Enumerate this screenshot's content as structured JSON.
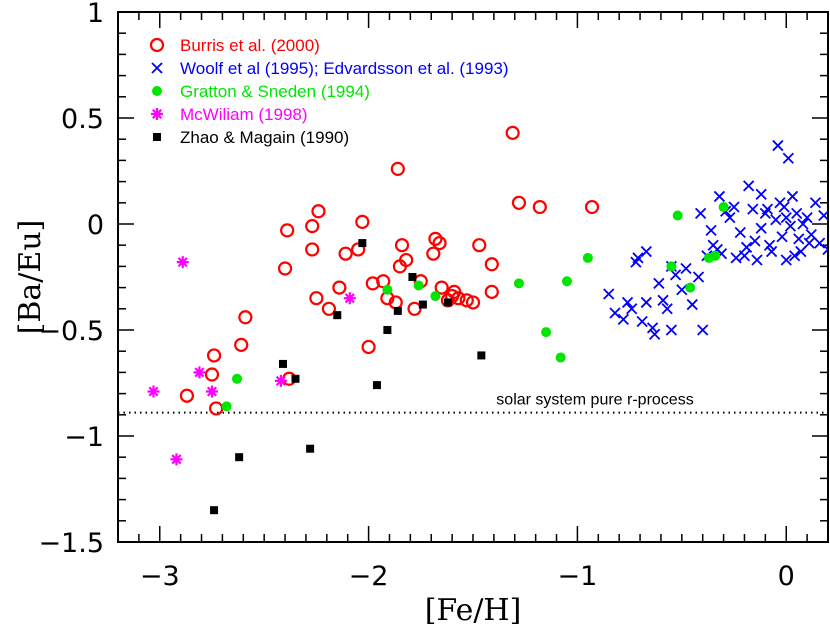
{
  "chart_data": {
    "type": "scatter",
    "title": "",
    "xlabel": "[Fe/H]",
    "ylabel": "[Ba/Eu]",
    "xlim": [
      -3.2,
      0.2
    ],
    "ylim": [
      -1.5,
      1.0
    ],
    "xticks": [
      {
        "value": -3,
        "label": "−3"
      },
      {
        "value": -2,
        "label": "−2"
      },
      {
        "value": -1,
        "label": "−1"
      },
      {
        "value": 0,
        "label": "0"
      }
    ],
    "yticks": [
      {
        "value": -1.5,
        "label": "−1.5"
      },
      {
        "value": -1,
        "label": "−1"
      },
      {
        "value": -0.5,
        "label": "−0.5"
      },
      {
        "value": 0,
        "label": "0"
      },
      {
        "value": 0.5,
        "label": "0.5"
      },
      {
        "value": 1,
        "label": "1"
      }
    ],
    "grid": false,
    "legend_position": "top-left",
    "reference_line": {
      "y": -0.89,
      "style": "dotted",
      "label": "solar system pure r-process"
    },
    "series": [
      {
        "name": "Burris et al. (2000)",
        "marker": "open-circle",
        "color": "#ff0000",
        "points": [
          [
            -2.87,
            -0.81
          ],
          [
            -2.75,
            -0.71
          ],
          [
            -2.74,
            -0.62
          ],
          [
            -2.73,
            -0.87
          ],
          [
            -2.59,
            -0.44
          ],
          [
            -2.61,
            -0.57
          ],
          [
            -2.38,
            -0.73
          ],
          [
            -2.4,
            -0.21
          ],
          [
            -2.39,
            -0.03
          ],
          [
            -2.27,
            -0.01
          ],
          [
            -2.27,
            -0.12
          ],
          [
            -2.24,
            0.06
          ],
          [
            -2.25,
            -0.35
          ],
          [
            -2.19,
            -0.4
          ],
          [
            -2.14,
            -0.3
          ],
          [
            -2.11,
            -0.14
          ],
          [
            -2.05,
            -0.12
          ],
          [
            -2.03,
            0.01
          ],
          [
            -2.0,
            -0.58
          ],
          [
            -1.98,
            -0.28
          ],
          [
            -1.93,
            -0.27
          ],
          [
            -1.91,
            -0.35
          ],
          [
            -1.87,
            -0.37
          ],
          [
            -1.86,
            0.26
          ],
          [
            -1.85,
            -0.2
          ],
          [
            -1.84,
            -0.1
          ],
          [
            -1.82,
            -0.17
          ],
          [
            -1.78,
            -0.4
          ],
          [
            -1.75,
            -0.27
          ],
          [
            -1.69,
            -0.14
          ],
          [
            -1.68,
            -0.07
          ],
          [
            -1.66,
            -0.09
          ],
          [
            -1.65,
            -0.3
          ],
          [
            -1.62,
            -0.36
          ],
          [
            -1.6,
            -0.34
          ],
          [
            -1.59,
            -0.32
          ],
          [
            -1.57,
            -0.35
          ],
          [
            -1.53,
            -0.36
          ],
          [
            -1.5,
            -0.37
          ],
          [
            -1.47,
            -0.1
          ],
          [
            -1.41,
            -0.19
          ],
          [
            -1.41,
            -0.32
          ],
          [
            -1.31,
            0.43
          ],
          [
            -1.28,
            0.1
          ],
          [
            -1.18,
            0.08
          ],
          [
            -0.93,
            0.08
          ]
        ]
      },
      {
        "name": "Woolf et al (1995); Edvardsson et al. (1993)",
        "marker": "cross",
        "color": "#0000ff",
        "points": [
          [
            -0.85,
            -0.33
          ],
          [
            -0.82,
            -0.42
          ],
          [
            -0.78,
            -0.45
          ],
          [
            -0.76,
            -0.37
          ],
          [
            -0.74,
            -0.4
          ],
          [
            -0.72,
            -0.18
          ],
          [
            -0.71,
            -0.16
          ],
          [
            -0.69,
            -0.46
          ],
          [
            -0.67,
            -0.37
          ],
          [
            -0.67,
            -0.13
          ],
          [
            -0.64,
            -0.49
          ],
          [
            -0.63,
            -0.52
          ],
          [
            -0.61,
            -0.28
          ],
          [
            -0.59,
            -0.36
          ],
          [
            -0.57,
            -0.4
          ],
          [
            -0.55,
            -0.2
          ],
          [
            -0.55,
            -0.5
          ],
          [
            -0.53,
            -0.24
          ],
          [
            -0.5,
            -0.31
          ],
          [
            -0.48,
            -0.21
          ],
          [
            -0.45,
            -0.38
          ],
          [
            -0.42,
            -0.25
          ],
          [
            -0.41,
            0.05
          ],
          [
            -0.4,
            -0.5
          ],
          [
            -0.38,
            -0.15
          ],
          [
            -0.35,
            -0.1
          ],
          [
            -0.33,
            -0.12
          ],
          [
            -0.32,
            0.13
          ],
          [
            -0.31,
            -0.14
          ],
          [
            -0.29,
            0.06
          ],
          [
            -0.27,
            0.03
          ],
          [
            -0.25,
            0.08
          ],
          [
            -0.22,
            -0.04
          ],
          [
            -0.2,
            -0.15
          ],
          [
            -0.19,
            -0.11
          ],
          [
            -0.18,
            0.18
          ],
          [
            -0.16,
            0.07
          ],
          [
            -0.15,
            -0.08
          ],
          [
            -0.14,
            -0.17
          ],
          [
            -0.12,
            -0.02
          ],
          [
            -0.12,
            0.14
          ],
          [
            -0.1,
            0.05
          ],
          [
            -0.08,
            -0.1
          ],
          [
            -0.07,
            -0.13
          ],
          [
            -0.05,
            0.02
          ],
          [
            -0.03,
            0.1
          ],
          [
            -0.02,
            -0.06
          ],
          [
            0.0,
            0.03
          ],
          [
            0.0,
            -0.17
          ],
          [
            0.02,
            -0.01
          ],
          [
            0.03,
            0.13
          ],
          [
            0.05,
            0.05
          ],
          [
            0.06,
            -0.07
          ],
          [
            0.08,
            0.0
          ],
          [
            0.1,
            0.03
          ],
          [
            0.12,
            -0.05
          ],
          [
            0.14,
            0.1
          ],
          [
            0.16,
            -0.09
          ],
          [
            0.18,
            0.04
          ],
          [
            0.2,
            -0.12
          ],
          [
            -0.04,
            0.37
          ],
          [
            0.01,
            0.31
          ],
          [
            -0.24,
            -0.16
          ],
          [
            -0.09,
            0.07
          ],
          [
            0.07,
            -0.13
          ],
          [
            -0.36,
            -0.03
          ],
          [
            0.11,
            -0.09
          ],
          [
            -0.01,
            0.08
          ],
          [
            0.04,
            -0.15
          ]
        ]
      },
      {
        "name": "Gratton & Sneden (1994)",
        "marker": "filled-circle",
        "color": "#00e600",
        "points": [
          [
            -2.68,
            -0.86
          ],
          [
            -2.63,
            -0.73
          ],
          [
            -1.91,
            -0.31
          ],
          [
            -1.76,
            -0.29
          ],
          [
            -1.68,
            -0.34
          ],
          [
            -1.28,
            -0.28
          ],
          [
            -1.15,
            -0.51
          ],
          [
            -1.08,
            -0.63
          ],
          [
            -1.05,
            -0.27
          ],
          [
            -0.95,
            -0.16
          ],
          [
            -0.55,
            -0.2
          ],
          [
            -0.52,
            0.04
          ],
          [
            -0.46,
            -0.3
          ],
          [
            -0.37,
            -0.16
          ],
          [
            -0.34,
            -0.15
          ],
          [
            -0.3,
            0.08
          ]
        ]
      },
      {
        "name": "McWiliam  (1998)",
        "marker": "asterisk",
        "color": "#ff00ff",
        "points": [
          [
            -3.03,
            -0.79
          ],
          [
            -2.92,
            -1.11
          ],
          [
            -2.89,
            -0.18
          ],
          [
            -2.81,
            -0.7
          ],
          [
            -2.75,
            -0.79
          ],
          [
            -2.42,
            -0.74
          ],
          [
            -2.09,
            -0.35
          ]
        ]
      },
      {
        "name": "Zhao & Magain (1990)",
        "marker": "filled-square",
        "color": "#000000",
        "points": [
          [
            -2.74,
            -1.35
          ],
          [
            -2.62,
            -1.1
          ],
          [
            -2.41,
            -0.66
          ],
          [
            -2.35,
            -0.73
          ],
          [
            -2.28,
            -1.06
          ],
          [
            -2.15,
            -0.43
          ],
          [
            -2.03,
            -0.09
          ],
          [
            -1.96,
            -0.76
          ],
          [
            -1.91,
            -0.5
          ],
          [
            -1.86,
            -0.41
          ],
          [
            -1.79,
            -0.25
          ],
          [
            -1.74,
            -0.38
          ],
          [
            -1.62,
            -0.37
          ],
          [
            -1.46,
            -0.62
          ]
        ]
      }
    ]
  }
}
